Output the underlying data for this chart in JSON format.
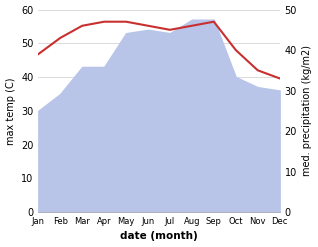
{
  "months": [
    "Jan",
    "Feb",
    "Mar",
    "Apr",
    "May",
    "Jun",
    "Jul",
    "Aug",
    "Sep",
    "Oct",
    "Nov",
    "Dec"
  ],
  "max_temp": [
    30,
    35,
    43,
    43,
    53,
    54,
    53,
    57,
    57,
    40,
    37,
    36
  ],
  "precipitation": [
    39,
    43,
    46,
    47,
    47,
    46,
    45,
    46,
    47,
    40,
    35,
    33
  ],
  "temp_color": "#c83030",
  "precip_fill_color": "#b8c4e8",
  "temp_ylim": [
    0,
    60
  ],
  "precip_ylim": [
    0,
    50
  ],
  "temp_yticks": [
    0,
    10,
    20,
    30,
    40,
    50,
    60
  ],
  "precip_yticks": [
    0,
    10,
    20,
    30,
    40,
    50
  ],
  "xlabel": "date (month)",
  "ylabel_left": "max temp (C)",
  "ylabel_right": "med. precipitation (kg/m2)",
  "background_color": "#ffffff",
  "grid_color": "#cccccc"
}
